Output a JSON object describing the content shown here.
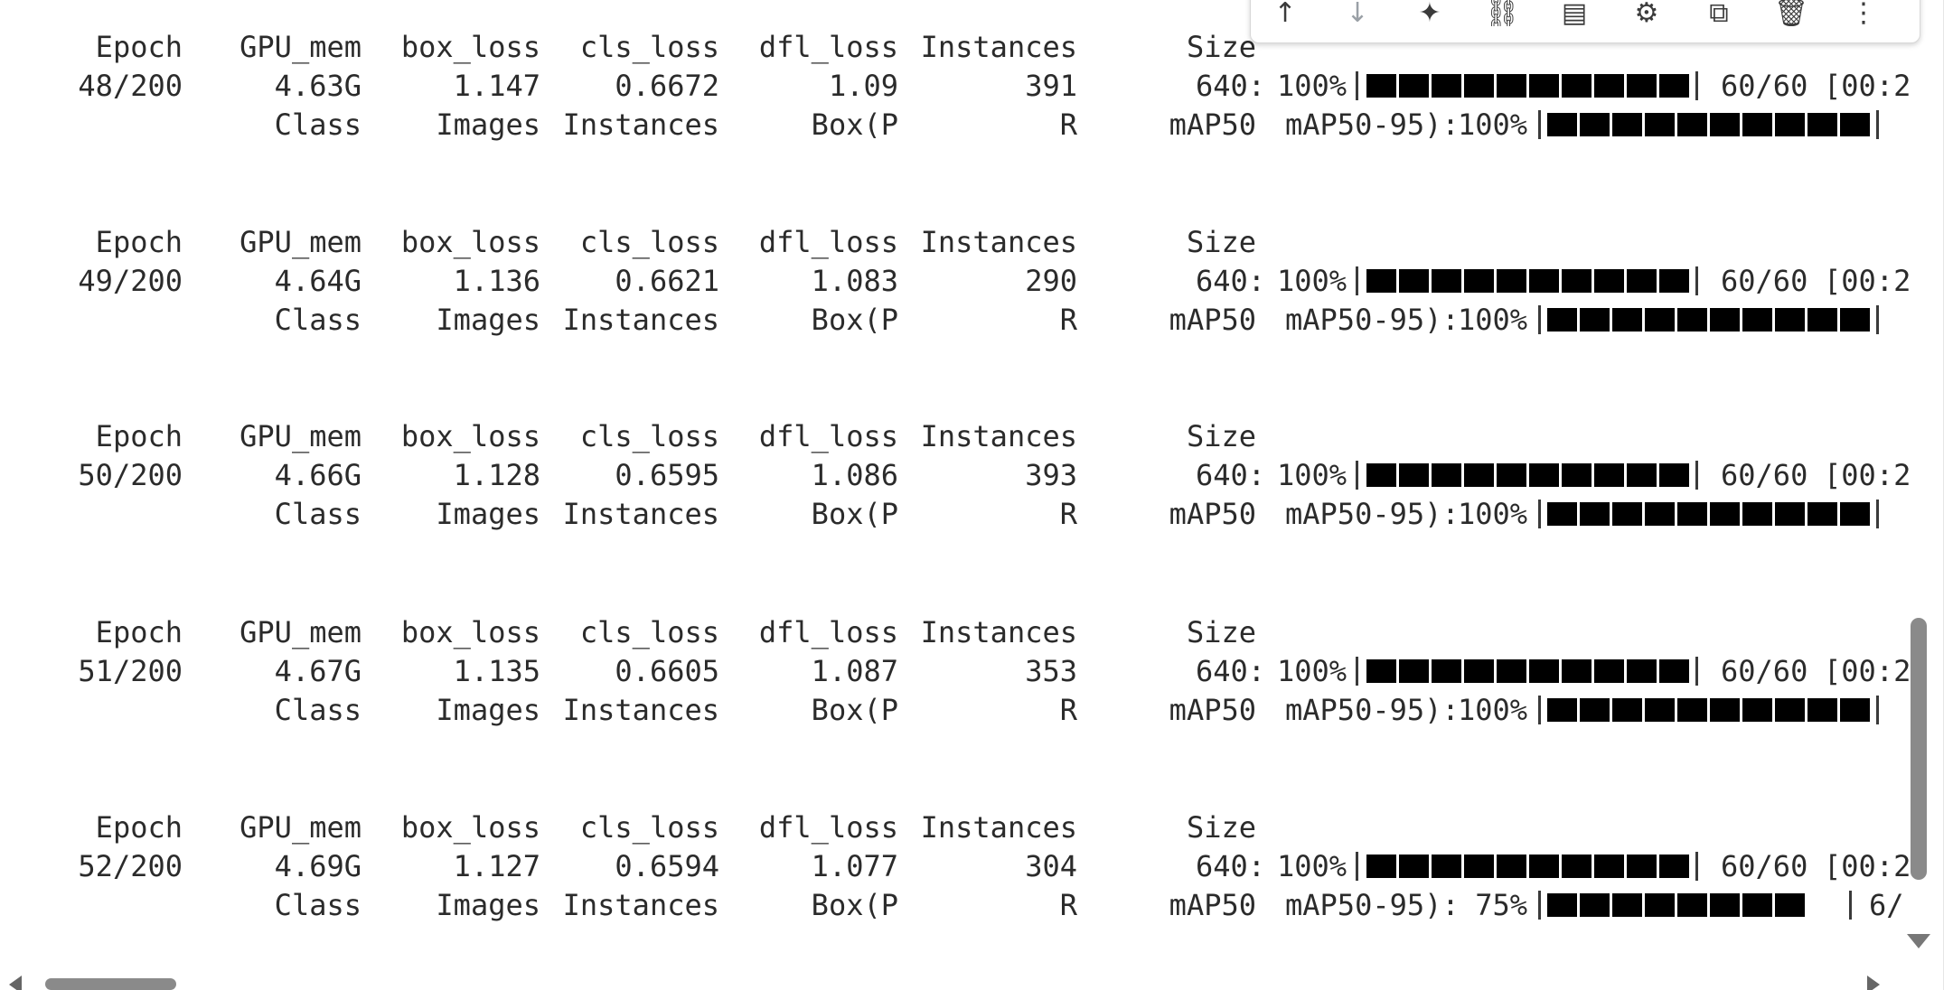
{
  "toolbar": {
    "buttons": [
      {
        "name": "move-up-icon",
        "glyph": "↑"
      },
      {
        "name": "move-down-icon",
        "glyph": "↓"
      },
      {
        "name": "gemini-sparkle-icon",
        "glyph": "✦"
      },
      {
        "name": "link-icon",
        "glyph": "⛓"
      },
      {
        "name": "comment-icon",
        "glyph": "▤"
      },
      {
        "name": "settings-gear-icon",
        "glyph": "⚙"
      },
      {
        "name": "open-in-tab-icon",
        "glyph": "⧉"
      },
      {
        "name": "delete-trash-icon",
        "glyph": "🗑"
      },
      {
        "name": "more-options-icon",
        "glyph": "⋮"
      }
    ]
  },
  "header": {
    "epoch": "Epoch",
    "gpu_mem": "GPU_mem",
    "box_loss": "box_loss",
    "cls_loss": "cls_loss",
    "dfl_loss": "dfl_loss",
    "instances": "Instances",
    "size": "Size"
  },
  "val_header": {
    "class": "Class",
    "images": "Images",
    "instances": "Instances",
    "box_p": "Box(P",
    "r": "R",
    "map50": "mAP50",
    "map50_95": "mAP50-95):"
  },
  "epochs": [
    {
      "epoch": "48/200",
      "gpu_mem": "4.63G",
      "box_loss": "1.147",
      "cls_loss": "0.6672",
      "dfl_loss": "1.09",
      "instances": "391",
      "size": "640:",
      "train_pct": "100%",
      "train_progress": 1.0,
      "train_count": "60/60",
      "train_time": "[00:2",
      "val_pct": "100%",
      "val_progress": 1.0,
      "val_tail": ""
    },
    {
      "epoch": "49/200",
      "gpu_mem": "4.64G",
      "box_loss": "1.136",
      "cls_loss": "0.6621",
      "dfl_loss": "1.083",
      "instances": "290",
      "size": "640:",
      "train_pct": "100%",
      "train_progress": 1.0,
      "train_count": "60/60",
      "train_time": "[00:2",
      "val_pct": "100%",
      "val_progress": 1.0,
      "val_tail": ""
    },
    {
      "epoch": "50/200",
      "gpu_mem": "4.66G",
      "box_loss": "1.128",
      "cls_loss": "0.6595",
      "dfl_loss": "1.086",
      "instances": "393",
      "size": "640:",
      "train_pct": "100%",
      "train_progress": 1.0,
      "train_count": "60/60",
      "train_time": "[00:2",
      "val_pct": "100%",
      "val_progress": 1.0,
      "val_tail": ""
    },
    {
      "epoch": "51/200",
      "gpu_mem": "4.67G",
      "box_loss": "1.135",
      "cls_loss": "0.6605",
      "dfl_loss": "1.087",
      "instances": "353",
      "size": "640:",
      "train_pct": "100%",
      "train_progress": 1.0,
      "train_count": "60/60",
      "train_time": "[00:2",
      "val_pct": "100%",
      "val_progress": 1.0,
      "val_tail": ""
    },
    {
      "epoch": "52/200",
      "gpu_mem": "4.69G",
      "box_loss": "1.127",
      "cls_loss": "0.6594",
      "dfl_loss": "1.077",
      "instances": "304",
      "size": "640:",
      "train_pct": "100%",
      "train_progress": 1.0,
      "train_count": "60/60",
      "train_time": "[00:2",
      "val_pct": "75%",
      "val_progress": 0.75,
      "val_tail": "6/"
    }
  ]
}
